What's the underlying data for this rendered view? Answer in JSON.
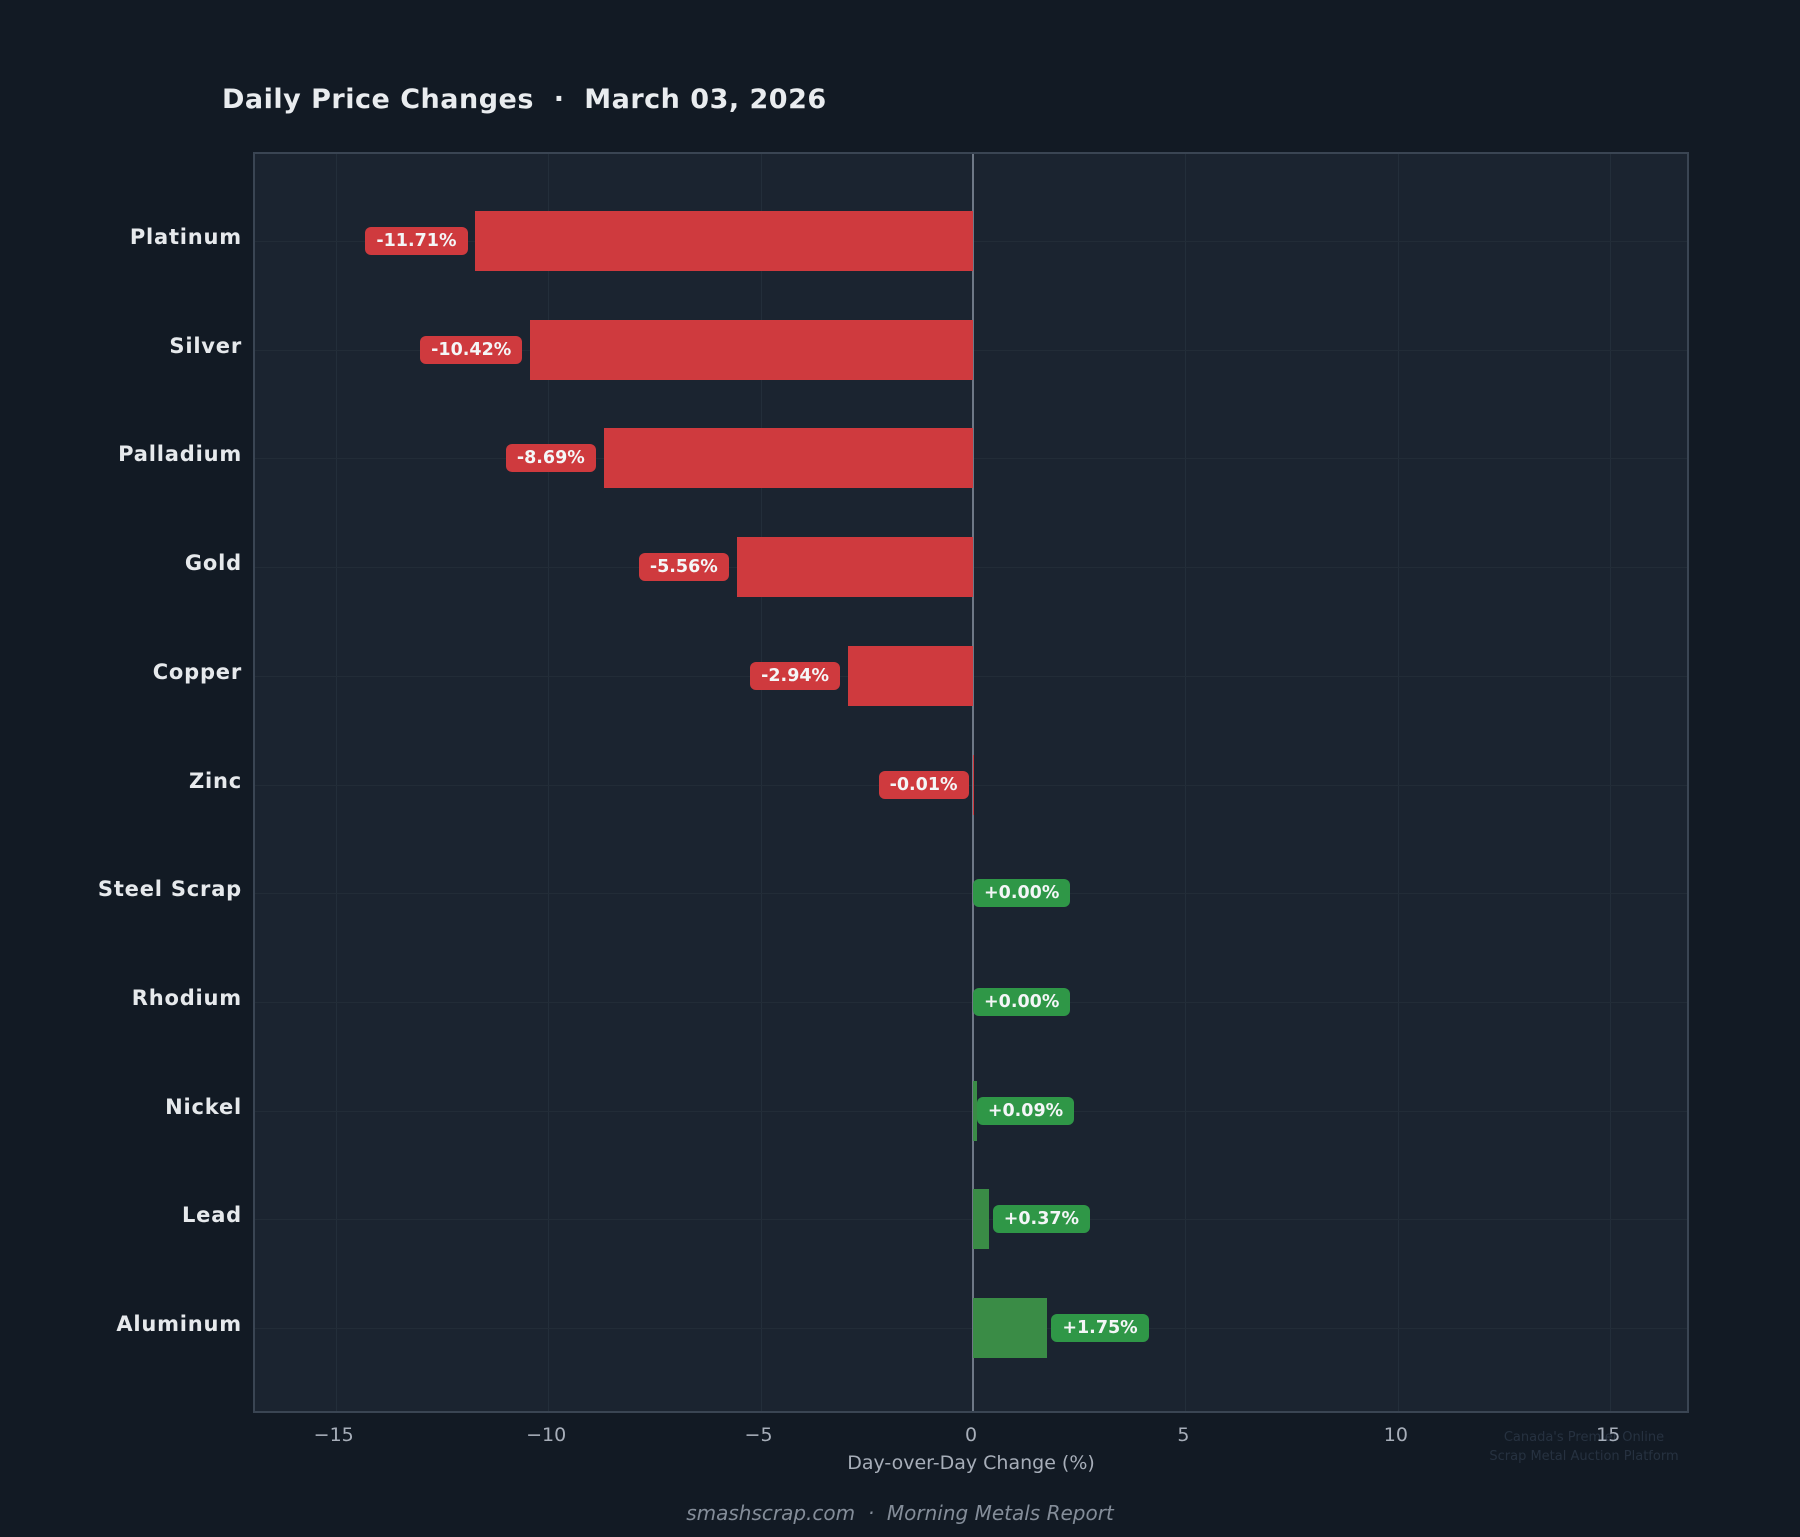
{
  "title": "Daily Price Changes  ·  March 03, 2026",
  "xlabel": "Day-over-Day Change (%)",
  "footer": "smashscrap.com  ·  Morning Metals Report",
  "watermark": {
    "line1": "Canada's Premier Online",
    "line2": "Scrap Metal Auction Platform"
  },
  "chart_data": {
    "type": "bar",
    "orientation": "horizontal",
    "title": "Daily Price Changes · March 03, 2026",
    "xlabel": "Day-over-Day Change (%)",
    "categories": [
      "Platinum",
      "Silver",
      "Palladium",
      "Gold",
      "Copper",
      "Zinc",
      "Steel Scrap",
      "Rhodium",
      "Nickel",
      "Lead",
      "Aluminum"
    ],
    "values": [
      -11.71,
      -10.42,
      -8.69,
      -5.56,
      -2.94,
      -0.01,
      0.0,
      0.0,
      0.09,
      0.37,
      1.75
    ],
    "bar_labels": [
      "-11.71%",
      "-10.42%",
      "-8.69%",
      "-5.56%",
      "-2.94%",
      "-0.01%",
      "+0.00%",
      "+0.00%",
      "+0.09%",
      "+0.37%",
      "+1.75%"
    ],
    "xticks": [
      -15,
      -10,
      -5,
      0,
      5,
      10,
      15
    ],
    "xtick_labels": [
      "−15",
      "−10",
      "−5",
      "0",
      "5",
      "10",
      "15"
    ],
    "xlim": [
      -16.9,
      16.9
    ],
    "grid": true,
    "colors": {
      "negative_bar": "#cf3a3e",
      "positive_bar": "#3a8c46",
      "negative_badge": "#cf3a3e",
      "positive_badge": "#2f9747",
      "background": "#121a24",
      "plot_background": "#1b2430",
      "zero_line": "#6e7886"
    }
  }
}
